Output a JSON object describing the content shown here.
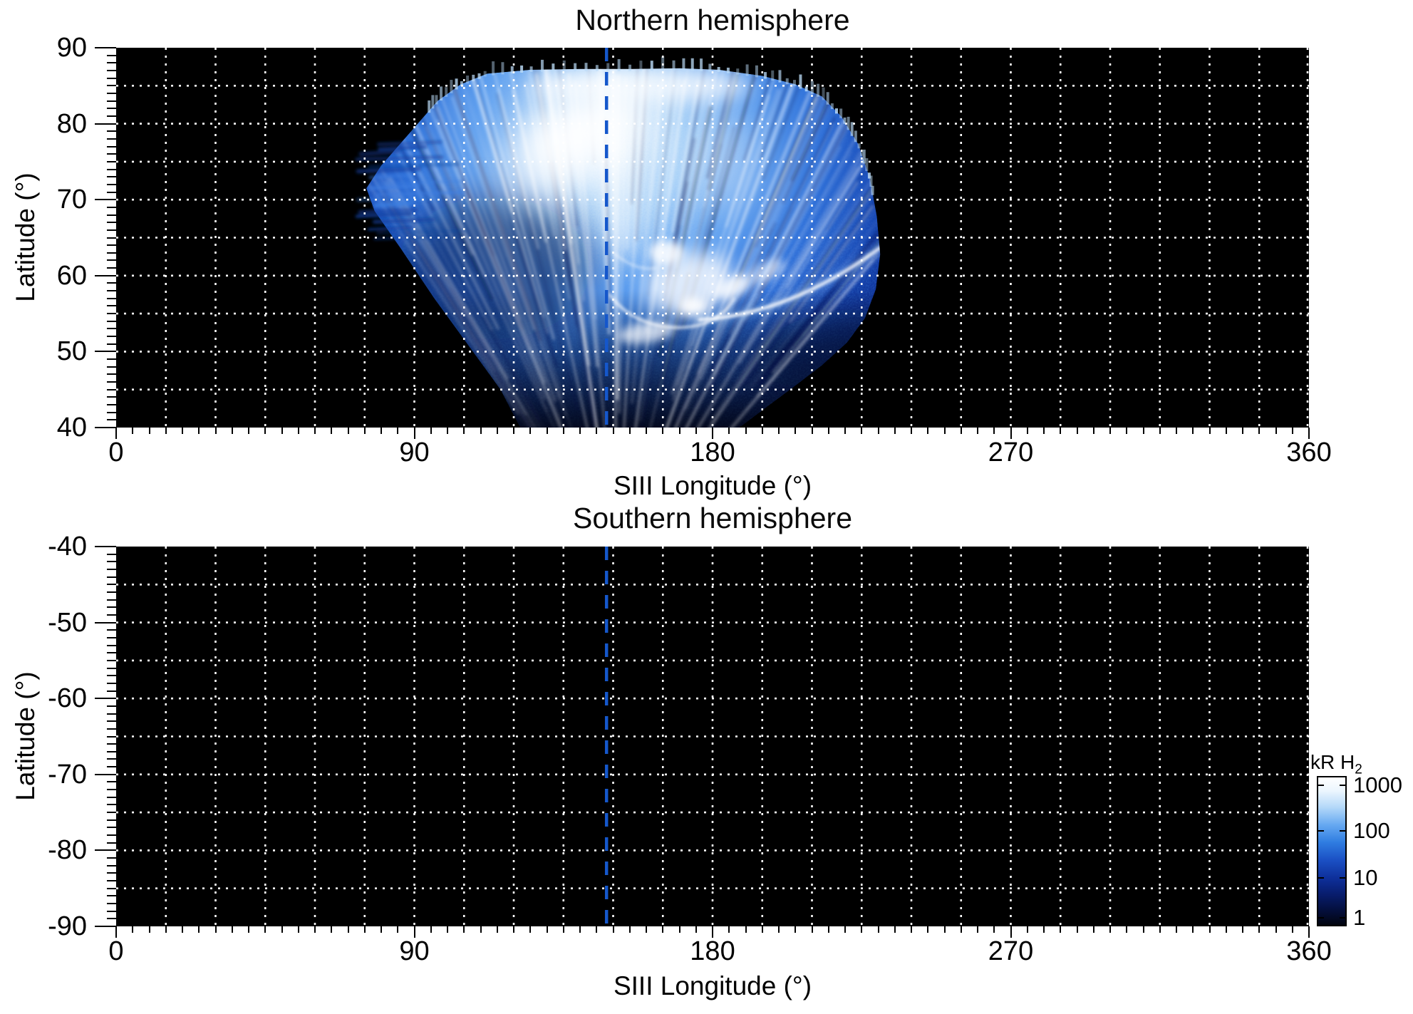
{
  "page": {
    "background": "#ffffff"
  },
  "north": {
    "title": "Northern hemisphere",
    "xlabel": "SIII Longitude (°)",
    "ylabel": "Latitude (°)",
    "xtick_labels": [
      "0",
      "90",
      "180",
      "270",
      "360"
    ],
    "ytick_labels": [
      "90",
      "80",
      "70",
      "60",
      "50",
      "40"
    ]
  },
  "south": {
    "title": "Southern hemisphere",
    "xlabel": "SIII Longitude (°)",
    "ylabel": "Latitude (°)",
    "xtick_labels": [
      "0",
      "90",
      "180",
      "270",
      "360"
    ],
    "ytick_labels": [
      "-40",
      "-50",
      "-60",
      "-70",
      "-80",
      "-90"
    ]
  },
  "colorbar": {
    "title_main": "kR H",
    "title_sub": "2",
    "tick_labels": [
      "1000",
      "100",
      "10",
      "1"
    ],
    "gradient": [
      [
        "0%",
        "#ffffff"
      ],
      [
        "9%",
        "#ecf6fe"
      ],
      [
        "20%",
        "#b5d9f9"
      ],
      [
        "32%",
        "#67a9f1"
      ],
      [
        "44%",
        "#2f7de1"
      ],
      [
        "56%",
        "#1b50c4"
      ],
      [
        "68%",
        "#0e309b"
      ],
      [
        "79%",
        "#081d6e"
      ],
      [
        "90%",
        "#040f3d"
      ],
      [
        "100%",
        "#02050f"
      ]
    ]
  },
  "chart_data": [
    {
      "type": "heatmap",
      "title": "Northern hemisphere",
      "xlabel": "SIII Longitude (°)",
      "ylabel": "Latitude (°)",
      "xlim": [
        0,
        360
      ],
      "ylim": [
        40,
        90
      ],
      "xticks": [
        0,
        90,
        180,
        270,
        360
      ],
      "yticks": [
        90,
        80,
        70,
        60,
        50,
        40
      ],
      "grid": {
        "x_spacing_deg": 15,
        "y_spacing_deg": 5,
        "style": "white dotted",
        "on": true
      },
      "background_value_kR": 0,
      "reference_longitude_line": {
        "lon_deg": 148,
        "style": "blue dashed vertical"
      },
      "emission": {
        "units": "kR H2",
        "intensity_scale": "log",
        "intensity_range_kR": [
          1,
          1000
        ],
        "coverage_extent": {
          "lon_deg": [
            73,
            232
          ],
          "lat_deg": [
            40,
            87.5
          ]
        },
        "morphology": "fan-shaped swath of H2 auroral emission widest near the pole, radial striations converging toward low latitude",
        "features": [
          {
            "name": "polar bright core",
            "lon_deg": 141,
            "lat_deg": 79,
            "approx_kR": 1000
          },
          {
            "name": "high-latitude emission band",
            "lon_range_deg": [
              105,
              215
            ],
            "lat_range_deg": [
              83,
              87.5
            ],
            "approx_kR": 400
          },
          {
            "name": "central swirl patches",
            "lon_deg": 172,
            "lat_deg": 58,
            "approx_kR": 800
          },
          {
            "name": "bright narrow auroral arc",
            "from": {
              "lon_deg": 176,
              "lat_deg": 54
            },
            "to": {
              "lon_deg": 231,
              "lat_deg": 64
            },
            "approx_kR": 1000
          },
          {
            "name": "lower bright curl",
            "lon_range_deg": [
              149,
              186
            ],
            "lat_range_deg": [
              52,
              58
            ],
            "approx_kR": 600
          },
          {
            "name": "left striated band",
            "lon_range_deg": [
              73,
              105
            ],
            "lat_range_deg": [
              64,
              77
            ],
            "approx_kR": 40
          },
          {
            "name": "diffuse speckled skirt",
            "lon_range_deg": [
              115,
              200
            ],
            "lat_range_deg": [
              40,
              55
            ],
            "approx_kR": 5
          }
        ]
      }
    },
    {
      "type": "heatmap",
      "title": "Southern hemisphere",
      "xlabel": "SIII Longitude (°)",
      "ylabel": "Latitude (°)",
      "xlim": [
        0,
        360
      ],
      "ylim": [
        -90,
        -40
      ],
      "xticks": [
        0,
        90,
        180,
        270,
        360
      ],
      "yticks": [
        -40,
        -50,
        -60,
        -70,
        -80,
        -90
      ],
      "grid": {
        "x_spacing_deg": 15,
        "y_spacing_deg": 5,
        "style": "white dotted",
        "on": true
      },
      "background_value_kR": 0,
      "reference_longitude_line": {
        "lon_deg": 148,
        "style": "blue dashed vertical"
      },
      "emission": {
        "units": "kR H2",
        "intensity_range_kR": [
          1,
          1000
        ],
        "features": [],
        "note": "entire field at background level (black), no emission shown"
      }
    }
  ],
  "colorbar_data": {
    "label": "kR H2",
    "scale": "log",
    "ticks": [
      1000,
      100,
      10,
      1
    ],
    "orientation": "vertical",
    "position": "right of southern panel"
  }
}
